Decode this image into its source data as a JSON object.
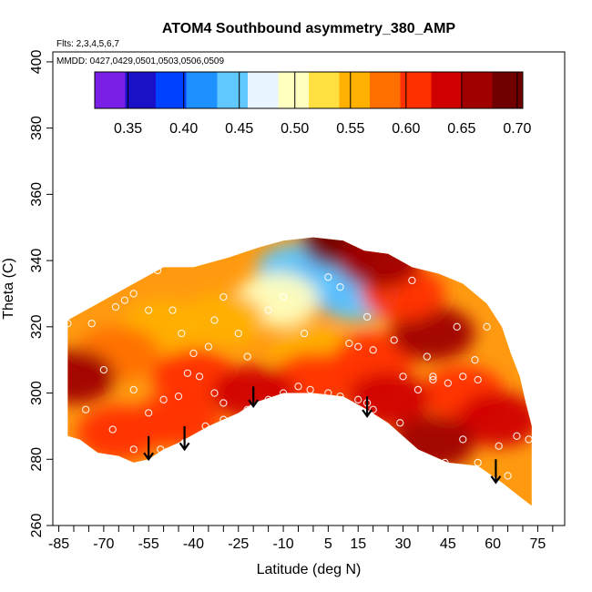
{
  "chart_data": {
    "type": "heatmap",
    "title": "ATOM4 Southbound asymmetry_380_AMP",
    "flights_note": "Flts: 2,3,4,5,6,7",
    "dates_note": "MMDD: 0427,0429,0501,0503,0506,0509",
    "xlabel": "Latitude (deg N)",
    "ylabel": "Theta (C)",
    "xlim": [
      -87,
      84
    ],
    "ylim": [
      260,
      403
    ],
    "x_tick_labels": [
      "-85",
      "-70",
      "-55",
      "-40",
      "-25",
      "-10",
      "5",
      "15",
      "30",
      "45",
      "60",
      "75"
    ],
    "y_tick_labels": [
      "260",
      "280",
      "300",
      "320",
      "340",
      "360",
      "380",
      "400"
    ],
    "colorbar": {
      "range": [
        0.32,
        0.705
      ],
      "tick_labels": [
        "0.35",
        "0.40",
        "0.45",
        "0.50",
        "0.55",
        "0.60",
        "0.65",
        "0.70"
      ],
      "colors": [
        "#7a1fe6",
        "#1a10c8",
        "#0040ff",
        "#1e90ff",
        "#60c8ff",
        "#e8f4ff",
        "#ffffc0",
        "#ffe040",
        "#ffb000",
        "#ff7000",
        "#ff3000",
        "#d00000",
        "#a00000",
        "#700000"
      ]
    },
    "coverage_boundary": {
      "top": [
        [
          -82,
          322
        ],
        [
          -72,
          327
        ],
        [
          -60,
          333
        ],
        [
          -50,
          338
        ],
        [
          -40,
          338
        ],
        [
          -28,
          341
        ],
        [
          -18,
          344
        ],
        [
          -10,
          346
        ],
        [
          0,
          347
        ],
        [
          10,
          346
        ],
        [
          17,
          343
        ],
        [
          25,
          342
        ],
        [
          33,
          338
        ],
        [
          42,
          336
        ],
        [
          50,
          333
        ],
        [
          58,
          327
        ],
        [
          63,
          320
        ],
        [
          66,
          312
        ],
        [
          69,
          305
        ],
        [
          71,
          297
        ],
        [
          73,
          290
        ],
        [
          73,
          266
        ]
      ],
      "bottom": [
        [
          73,
          266
        ],
        [
          70,
          268
        ],
        [
          63,
          273
        ],
        [
          55,
          278
        ],
        [
          45,
          279
        ],
        [
          35,
          283
        ],
        [
          25,
          291
        ],
        [
          18,
          295
        ],
        [
          10,
          299
        ],
        [
          0,
          300
        ],
        [
          -10,
          300
        ],
        [
          -20,
          297
        ],
        [
          -25,
          294
        ],
        [
          -35,
          290
        ],
        [
          -45,
          285
        ],
        [
          -50,
          283
        ],
        [
          -55,
          280
        ],
        [
          -60,
          279
        ],
        [
          -65,
          281
        ],
        [
          -72,
          282
        ],
        [
          -78,
          286
        ],
        [
          -82,
          287
        ]
      ]
    },
    "value_field": [
      {
        "lat": 5,
        "theta": 333,
        "value": 0.36
      },
      {
        "lat": -5,
        "theta": 337,
        "value": 0.44
      },
      {
        "lat": 15,
        "theta": 330,
        "value": 0.45
      },
      {
        "lat": -12,
        "theta": 328,
        "value": 0.5
      },
      {
        "lat": -30,
        "theta": 322,
        "value": 0.54
      },
      {
        "lat": -50,
        "theta": 320,
        "value": 0.56
      },
      {
        "lat": -65,
        "theta": 312,
        "value": 0.57
      },
      {
        "lat": -80,
        "theta": 305,
        "value": 0.66
      },
      {
        "lat": 0,
        "theta": 312,
        "value": 0.56
      },
      {
        "lat": 20,
        "theta": 310,
        "value": 0.6
      },
      {
        "lat": -40,
        "theta": 305,
        "value": 0.6
      },
      {
        "lat": 40,
        "theta": 318,
        "value": 0.66
      },
      {
        "lat": 30,
        "theta": 330,
        "value": 0.62
      },
      {
        "lat": 50,
        "theta": 300,
        "value": 0.62
      },
      {
        "lat": 62,
        "theta": 292,
        "value": 0.64
      },
      {
        "lat": 0,
        "theta": 304,
        "value": 0.62
      },
      {
        "lat": -20,
        "theta": 300,
        "value": 0.63
      },
      {
        "lat": 25,
        "theta": 298,
        "value": 0.64
      },
      {
        "lat": -45,
        "theta": 292,
        "value": 0.62
      },
      {
        "lat": -65,
        "theta": 288,
        "value": 0.6
      },
      {
        "lat": 40,
        "theta": 285,
        "value": 0.65
      },
      {
        "lat": 10,
        "theta": 346,
        "value": 0.68
      },
      {
        "lat": 22,
        "theta": 340,
        "value": 0.66
      }
    ],
    "observation_points": [
      [
        -82,
        321
      ],
      [
        -74,
        321
      ],
      [
        -66,
        326
      ],
      [
        -63,
        328
      ],
      [
        -60,
        330
      ],
      [
        -55,
        325
      ],
      [
        -52,
        337
      ],
      [
        -47,
        325
      ],
      [
        -44,
        318
      ],
      [
        -40,
        312
      ],
      [
        -35,
        314
      ],
      [
        -33,
        322
      ],
      [
        -30,
        329
      ],
      [
        -25,
        318
      ],
      [
        -22,
        311
      ],
      [
        -15,
        325
      ],
      [
        -10,
        329
      ],
      [
        -3,
        318
      ],
      [
        5,
        335
      ],
      [
        9,
        332
      ],
      [
        12,
        315
      ],
      [
        15,
        314
      ],
      [
        18,
        323
      ],
      [
        20,
        313
      ],
      [
        27,
        316
      ],
      [
        33,
        334
      ],
      [
        38,
        311
      ],
      [
        40,
        304
      ],
      [
        48,
        320
      ],
      [
        50,
        305
      ],
      [
        54,
        310
      ],
      [
        55,
        304
      ],
      [
        58,
        320
      ],
      [
        62,
        330
      ],
      [
        68,
        335
      ],
      [
        -76,
        295
      ],
      [
        -70,
        307
      ],
      [
        -67,
        289
      ],
      [
        -60,
        301
      ],
      [
        -55,
        294
      ],
      [
        -50,
        298
      ],
      [
        -45,
        299
      ],
      [
        -42,
        306
      ],
      [
        -38,
        305
      ],
      [
        -33,
        300
      ],
      [
        -30,
        297
      ],
      [
        -25,
        289
      ],
      [
        -20,
        292
      ],
      [
        -15,
        298
      ],
      [
        -10,
        300
      ],
      [
        -5,
        302
      ],
      [
        -1,
        301
      ],
      [
        5,
        300
      ],
      [
        9,
        299
      ],
      [
        15,
        298
      ],
      [
        18,
        297
      ],
      [
        20,
        295
      ],
      [
        29,
        291
      ],
      [
        30,
        305
      ],
      [
        35,
        301
      ],
      [
        40,
        305
      ],
      [
        45,
        303
      ],
      [
        44,
        279
      ],
      [
        50,
        286
      ],
      [
        55,
        279
      ],
      [
        62,
        284
      ],
      [
        68,
        287
      ],
      [
        72,
        286
      ],
      [
        65,
        275
      ],
      [
        -65,
        279
      ],
      [
        -60,
        283
      ],
      [
        -51,
        283
      ],
      [
        -43,
        285
      ],
      [
        -36,
        290
      ],
      [
        -30,
        292
      ],
      [
        -22,
        295
      ]
    ],
    "arrows": [
      {
        "lat": -55,
        "theta_from": 287,
        "theta_to": 280
      },
      {
        "lat": -43,
        "theta_from": 290,
        "theta_to": 283
      },
      {
        "lat": -20,
        "theta_from": 302,
        "theta_to": 296
      },
      {
        "lat": 18,
        "theta_from": 299,
        "theta_to": 293
      },
      {
        "lat": 61,
        "theta_from": 280,
        "theta_to": 273
      }
    ]
  }
}
